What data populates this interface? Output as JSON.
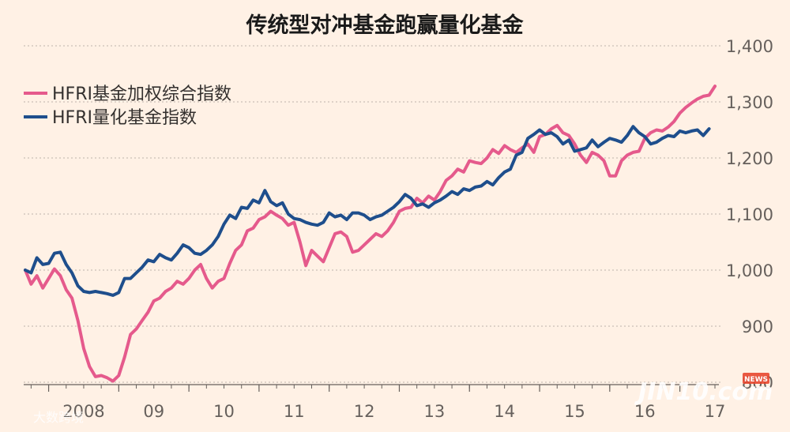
{
  "chart_data": {
    "type": "line",
    "title": "传统型对冲基金跑赢量化基金",
    "xlabel": "",
    "ylabel": "",
    "ylim": [
      800,
      1400
    ],
    "yticks": [
      800,
      900,
      1000,
      1100,
      1200,
      1300,
      1400
    ],
    "ytick_labels": [
      "800",
      "900",
      "1,000",
      "1,100",
      "1,200",
      "1,300",
      "1,400"
    ],
    "x_tick_labels": [
      {
        "t": 2008.0,
        "label": "2008"
      },
      {
        "t": 2009.0,
        "label": "09"
      },
      {
        "t": 2010.0,
        "label": "10"
      },
      {
        "t": 2011.0,
        "label": "11"
      },
      {
        "t": 2012.0,
        "label": "12"
      },
      {
        "t": 2013.0,
        "label": "13"
      },
      {
        "t": 2014.0,
        "label": "14"
      },
      {
        "t": 2015.0,
        "label": "15"
      },
      {
        "t": 2016.0,
        "label": "16"
      },
      {
        "t": 2017.0,
        "label": "17"
      }
    ],
    "grid": true,
    "legend_position": "top-left",
    "colors": {
      "background": "#FFF1E5",
      "pink": "#E55A8C",
      "blue": "#1E4E8C",
      "grid": "#C9C0B7"
    },
    "series": [
      {
        "name": "HFRI基金加权综合指数",
        "color": "#E55A8C",
        "points": [
          [
            2007.667,
            1000
          ],
          [
            2007.75,
            975
          ],
          [
            2007.833,
            990
          ],
          [
            2007.917,
            968
          ],
          [
            2008.0,
            985
          ],
          [
            2008.083,
            1002
          ],
          [
            2008.167,
            990
          ],
          [
            2008.25,
            965
          ],
          [
            2008.333,
            950
          ],
          [
            2008.417,
            910
          ],
          [
            2008.5,
            860
          ],
          [
            2008.583,
            828
          ],
          [
            2008.667,
            810
          ],
          [
            2008.75,
            812
          ],
          [
            2008.833,
            808
          ],
          [
            2008.917,
            802
          ],
          [
            2009.0,
            812
          ],
          [
            2009.083,
            845
          ],
          [
            2009.167,
            885
          ],
          [
            2009.25,
            895
          ],
          [
            2009.333,
            910
          ],
          [
            2009.417,
            925
          ],
          [
            2009.5,
            945
          ],
          [
            2009.583,
            950
          ],
          [
            2009.667,
            962
          ],
          [
            2009.75,
            968
          ],
          [
            2009.833,
            980
          ],
          [
            2009.917,
            975
          ],
          [
            2010.0,
            985
          ],
          [
            2010.083,
            1000
          ],
          [
            2010.167,
            1010
          ],
          [
            2010.25,
            985
          ],
          [
            2010.333,
            968
          ],
          [
            2010.417,
            980
          ],
          [
            2010.5,
            985
          ],
          [
            2010.583,
            1012
          ],
          [
            2010.667,
            1035
          ],
          [
            2010.75,
            1045
          ],
          [
            2010.833,
            1070
          ],
          [
            2010.917,
            1075
          ],
          [
            2011.0,
            1090
          ],
          [
            2011.083,
            1095
          ],
          [
            2011.167,
            1105
          ],
          [
            2011.25,
            1098
          ],
          [
            2011.333,
            1092
          ],
          [
            2011.417,
            1080
          ],
          [
            2011.5,
            1085
          ],
          [
            2011.583,
            1050
          ],
          [
            2011.667,
            1008
          ],
          [
            2011.75,
            1035
          ],
          [
            2011.833,
            1025
          ],
          [
            2011.917,
            1015
          ],
          [
            2012.0,
            1040
          ],
          [
            2012.083,
            1065
          ],
          [
            2012.167,
            1068
          ],
          [
            2012.25,
            1060
          ],
          [
            2012.333,
            1032
          ],
          [
            2012.417,
            1035
          ],
          [
            2012.5,
            1045
          ],
          [
            2012.583,
            1055
          ],
          [
            2012.667,
            1065
          ],
          [
            2012.75,
            1060
          ],
          [
            2012.833,
            1070
          ],
          [
            2012.917,
            1085
          ],
          [
            2013.0,
            1105
          ],
          [
            2013.083,
            1110
          ],
          [
            2013.167,
            1112
          ],
          [
            2013.25,
            1128
          ],
          [
            2013.333,
            1120
          ],
          [
            2013.417,
            1132
          ],
          [
            2013.5,
            1125
          ],
          [
            2013.583,
            1140
          ],
          [
            2013.667,
            1160
          ],
          [
            2013.75,
            1168
          ],
          [
            2013.833,
            1180
          ],
          [
            2013.917,
            1175
          ],
          [
            2014.0,
            1195
          ],
          [
            2014.083,
            1192
          ],
          [
            2014.167,
            1190
          ],
          [
            2014.25,
            1200
          ],
          [
            2014.333,
            1215
          ],
          [
            2014.417,
            1208
          ],
          [
            2014.5,
            1222
          ],
          [
            2014.583,
            1215
          ],
          [
            2014.667,
            1210
          ],
          [
            2014.75,
            1218
          ],
          [
            2014.833,
            1225
          ],
          [
            2014.917,
            1210
          ],
          [
            2015.0,
            1238
          ],
          [
            2015.083,
            1242
          ],
          [
            2015.167,
            1252
          ],
          [
            2015.25,
            1258
          ],
          [
            2015.333,
            1245
          ],
          [
            2015.417,
            1240
          ],
          [
            2015.5,
            1225
          ],
          [
            2015.583,
            1205
          ],
          [
            2015.667,
            1192
          ],
          [
            2015.75,
            1210
          ],
          [
            2015.833,
            1205
          ],
          [
            2015.917,
            1195
          ],
          [
            2016.0,
            1168
          ],
          [
            2016.083,
            1168
          ],
          [
            2016.167,
            1195
          ],
          [
            2016.25,
            1205
          ],
          [
            2016.333,
            1210
          ],
          [
            2016.417,
            1212
          ],
          [
            2016.5,
            1235
          ],
          [
            2016.583,
            1245
          ],
          [
            2016.667,
            1250
          ],
          [
            2016.75,
            1248
          ],
          [
            2016.833,
            1255
          ],
          [
            2016.917,
            1265
          ],
          [
            2017.0,
            1280
          ],
          [
            2017.083,
            1290
          ],
          [
            2017.167,
            1298
          ],
          [
            2017.25,
            1305
          ],
          [
            2017.333,
            1310
          ],
          [
            2017.417,
            1312
          ],
          [
            2017.5,
            1328
          ]
        ]
      },
      {
        "name": "HFRI量化基金指数",
        "color": "#1E4E8C",
        "points": [
          [
            2007.667,
            1000
          ],
          [
            2007.75,
            995
          ],
          [
            2007.833,
            1022
          ],
          [
            2007.917,
            1010
          ],
          [
            2008.0,
            1012
          ],
          [
            2008.083,
            1030
          ],
          [
            2008.167,
            1032
          ],
          [
            2008.25,
            1010
          ],
          [
            2008.333,
            995
          ],
          [
            2008.417,
            972
          ],
          [
            2008.5,
            962
          ],
          [
            2008.583,
            960
          ],
          [
            2008.667,
            962
          ],
          [
            2008.75,
            960
          ],
          [
            2008.833,
            958
          ],
          [
            2008.917,
            955
          ],
          [
            2009.0,
            960
          ],
          [
            2009.083,
            985
          ],
          [
            2009.167,
            985
          ],
          [
            2009.25,
            995
          ],
          [
            2009.333,
            1005
          ],
          [
            2009.417,
            1018
          ],
          [
            2009.5,
            1015
          ],
          [
            2009.583,
            1028
          ],
          [
            2009.667,
            1022
          ],
          [
            2009.75,
            1018
          ],
          [
            2009.833,
            1030
          ],
          [
            2009.917,
            1045
          ],
          [
            2010.0,
            1040
          ],
          [
            2010.083,
            1030
          ],
          [
            2010.167,
            1028
          ],
          [
            2010.25,
            1035
          ],
          [
            2010.333,
            1045
          ],
          [
            2010.417,
            1060
          ],
          [
            2010.5,
            1082
          ],
          [
            2010.583,
            1098
          ],
          [
            2010.667,
            1092
          ],
          [
            2010.75,
            1112
          ],
          [
            2010.833,
            1110
          ],
          [
            2010.917,
            1125
          ],
          [
            2011.0,
            1120
          ],
          [
            2011.083,
            1142
          ],
          [
            2011.167,
            1122
          ],
          [
            2011.25,
            1115
          ],
          [
            2011.333,
            1120
          ],
          [
            2011.417,
            1100
          ],
          [
            2011.5,
            1092
          ],
          [
            2011.583,
            1090
          ],
          [
            2011.667,
            1085
          ],
          [
            2011.75,
            1082
          ],
          [
            2011.833,
            1080
          ],
          [
            2011.917,
            1085
          ],
          [
            2012.0,
            1102
          ],
          [
            2012.083,
            1095
          ],
          [
            2012.167,
            1098
          ],
          [
            2012.25,
            1090
          ],
          [
            2012.333,
            1102
          ],
          [
            2012.417,
            1102
          ],
          [
            2012.5,
            1098
          ],
          [
            2012.583,
            1090
          ],
          [
            2012.667,
            1095
          ],
          [
            2012.75,
            1098
          ],
          [
            2012.833,
            1105
          ],
          [
            2012.917,
            1112
          ],
          [
            2013.0,
            1122
          ],
          [
            2013.083,
            1135
          ],
          [
            2013.167,
            1128
          ],
          [
            2013.25,
            1115
          ],
          [
            2013.333,
            1118
          ],
          [
            2013.417,
            1112
          ],
          [
            2013.5,
            1120
          ],
          [
            2013.583,
            1125
          ],
          [
            2013.667,
            1132
          ],
          [
            2013.75,
            1140
          ],
          [
            2013.833,
            1135
          ],
          [
            2013.917,
            1145
          ],
          [
            2014.0,
            1142
          ],
          [
            2014.083,
            1148
          ],
          [
            2014.167,
            1150
          ],
          [
            2014.25,
            1158
          ],
          [
            2014.333,
            1152
          ],
          [
            2014.417,
            1165
          ],
          [
            2014.5,
            1175
          ],
          [
            2014.583,
            1180
          ],
          [
            2014.667,
            1205
          ],
          [
            2014.75,
            1210
          ],
          [
            2014.833,
            1235
          ],
          [
            2014.917,
            1242
          ],
          [
            2015.0,
            1250
          ],
          [
            2015.083,
            1242
          ],
          [
            2015.167,
            1245
          ],
          [
            2015.25,
            1238
          ],
          [
            2015.333,
            1225
          ],
          [
            2015.417,
            1232
          ],
          [
            2015.5,
            1212
          ],
          [
            2015.583,
            1215
          ],
          [
            2015.667,
            1218
          ],
          [
            2015.75,
            1232
          ],
          [
            2015.833,
            1220
          ],
          [
            2015.917,
            1228
          ],
          [
            2016.0,
            1235
          ],
          [
            2016.083,
            1232
          ],
          [
            2016.167,
            1228
          ],
          [
            2016.25,
            1240
          ],
          [
            2016.333,
            1256
          ],
          [
            2016.417,
            1245
          ],
          [
            2016.5,
            1238
          ],
          [
            2016.583,
            1225
          ],
          [
            2016.667,
            1228
          ],
          [
            2016.75,
            1235
          ],
          [
            2016.833,
            1240
          ],
          [
            2016.917,
            1238
          ],
          [
            2017.0,
            1248
          ],
          [
            2017.083,
            1245
          ],
          [
            2017.167,
            1248
          ],
          [
            2017.25,
            1250
          ],
          [
            2017.333,
            1240
          ],
          [
            2017.417,
            1252
          ]
        ]
      }
    ]
  },
  "watermarks": {
    "left": "大数跨境",
    "right": "JIN10.com",
    "right_badge": "NEWS"
  }
}
